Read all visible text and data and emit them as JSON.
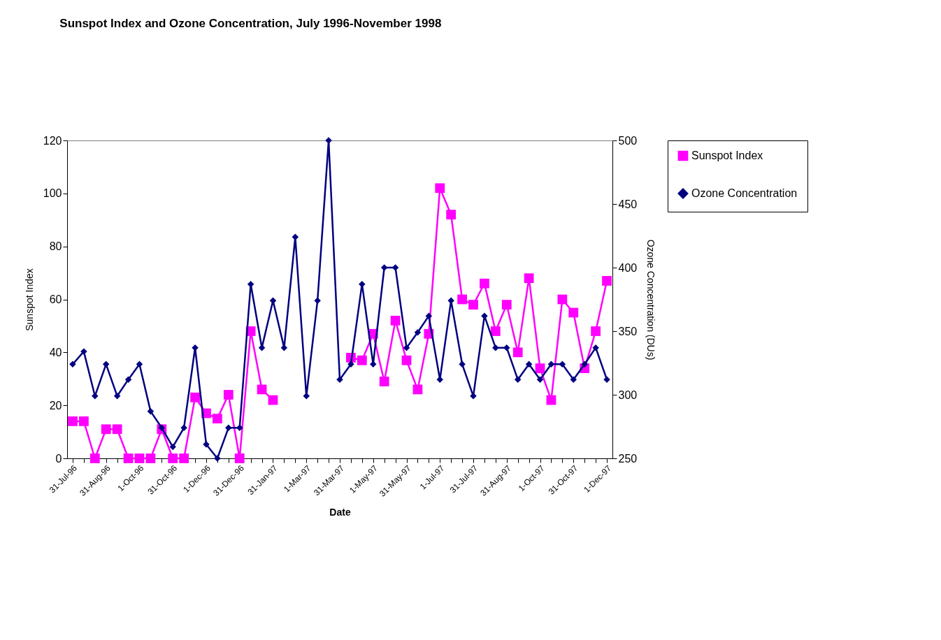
{
  "chart_data": {
    "type": "line",
    "title": "Sunspot Index and Ozone Concentration, July 1996-November 1998",
    "xlabel": "Date",
    "ylabel": "Sunspot Index",
    "y2label": "Ozone Concentration (DUs)",
    "categories": [
      "31-Jul-96",
      null,
      null,
      "31-Aug-96",
      null,
      null,
      "1-Oct-96",
      null,
      null,
      "31-Oct-96",
      null,
      null,
      "1-Dec-96",
      null,
      null,
      "31-Dec-96",
      null,
      null,
      "31-Jan-97",
      null,
      null,
      "1-Mar-97",
      null,
      null,
      "31-Mar-97",
      null,
      null,
      "1-May-97",
      null,
      null,
      "31-May-97",
      null,
      null,
      "1-Jul-97",
      null,
      null,
      "31-Jul-97",
      null,
      null,
      "31-Aug-97",
      null,
      null,
      "1-Oct-97",
      null,
      null,
      "31-Oct-97",
      null,
      null,
      "1-Dec-97"
    ],
    "series": [
      {
        "name": "Sunspot Index",
        "color": "#ff00ff",
        "marker": "square",
        "values": [
          14,
          14,
          0,
          11,
          11,
          0,
          0,
          0,
          11,
          0,
          0,
          23,
          17,
          15,
          24,
          0,
          48,
          26,
          22,
          null,
          null,
          null,
          null,
          null,
          null,
          38,
          37,
          47,
          29,
          52,
          37,
          26,
          47,
          102,
          92,
          60,
          58,
          66,
          48,
          58,
          40,
          68,
          34,
          22,
          60,
          55,
          34,
          48,
          67
        ]
      },
      {
        "name": "Ozone Concentration",
        "color": "#000080",
        "marker": "diamond",
        "axis": "y2",
        "values": [
          324,
          334,
          299,
          324,
          299,
          312,
          324,
          287,
          274,
          259,
          274,
          337,
          261,
          250,
          274,
          274,
          387,
          337,
          374,
          337,
          424,
          299,
          374,
          500,
          312,
          324,
          387,
          324,
          400,
          400,
          337,
          349,
          362,
          312,
          374,
          324,
          299,
          362,
          337,
          337,
          312,
          324,
          312,
          324,
          324,
          312,
          324,
          337,
          312
        ]
      }
    ],
    "ylim": [
      0,
      120
    ],
    "yticks": [
      0,
      20,
      40,
      60,
      80,
      100,
      120
    ],
    "y2lim": [
      250,
      500
    ],
    "y2ticks": [
      250,
      300,
      350,
      400,
      450,
      500
    ],
    "grid": false,
    "legend": "right"
  }
}
